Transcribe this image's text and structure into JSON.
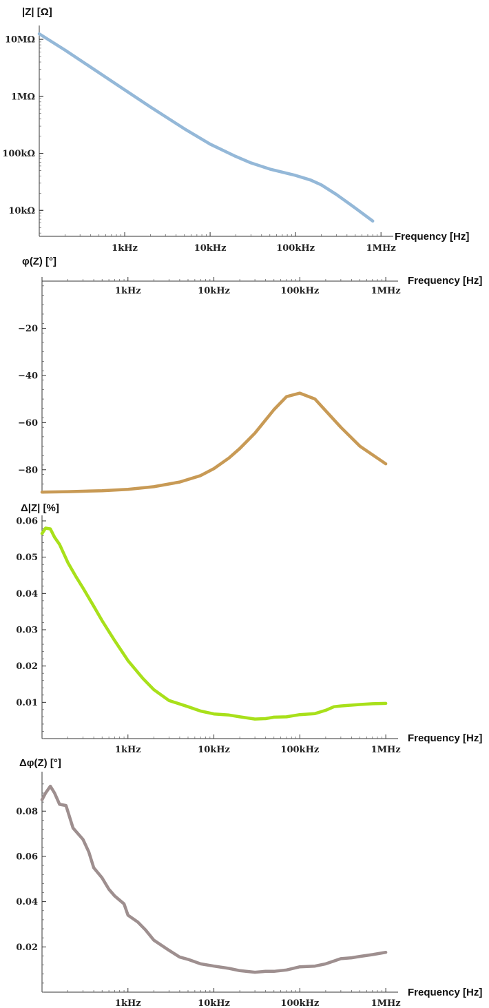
{
  "chart_data": [
    {
      "type": "line",
      "ylabel": "|Z| [Ω]",
      "xlabel": "Frequency [Hz]",
      "x_scale": "log",
      "y_scale": "log",
      "xlim": [
        100,
        1200000
      ],
      "ylim": [
        3500,
        14000000
      ],
      "x_ticks": [
        {
          "value": 1000,
          "label": "1kHz"
        },
        {
          "value": 10000,
          "label": "10kHz"
        },
        {
          "value": 100000,
          "label": "100kHz"
        },
        {
          "value": 1000000,
          "label": "1MHz"
        }
      ],
      "y_ticks": [
        {
          "value": 10000,
          "label": "10kΩ"
        },
        {
          "value": 100000,
          "label": "100kΩ"
        },
        {
          "value": 1000000,
          "label": "1MΩ"
        },
        {
          "value": 10000000,
          "label": "10MΩ"
        }
      ],
      "color": "#94b8d8",
      "x": [
        100,
        200,
        500,
        1000,
        2000,
        5000,
        10000,
        20000,
        30000,
        50000,
        100000,
        150000,
        200000,
        300000,
        500000,
        800000
      ],
      "y": [
        12500000,
        6500000,
        2600000,
        1300000,
        650000,
        270000,
        145000,
        88000,
        68000,
        53000,
        41000,
        34000,
        28000,
        19000,
        11000,
        6500
      ]
    },
    {
      "type": "line",
      "ylabel": "φ(Z) [°]",
      "xlabel": "Frequency [Hz]",
      "x_scale": "log",
      "xlim": [
        100,
        1200000
      ],
      "ylim": [
        -90,
        0
      ],
      "x_ticks": [
        {
          "value": 1000,
          "label": "1kHz"
        },
        {
          "value": 10000,
          "label": "10kHz"
        },
        {
          "value": 100000,
          "label": "100kHz"
        },
        {
          "value": 1000000,
          "label": "1MHz"
        }
      ],
      "y_ticks": [
        {
          "value": -20,
          "label": "−20"
        },
        {
          "value": -40,
          "label": "−40"
        },
        {
          "value": -60,
          "label": "−60"
        },
        {
          "value": -80,
          "label": "−80"
        }
      ],
      "color": "#c89a55",
      "x": [
        100,
        200,
        500,
        1000,
        2000,
        4000,
        7000,
        10000,
        15000,
        20000,
        30000,
        50000,
        70000,
        100000,
        150000,
        200000,
        300000,
        500000,
        1000000
      ],
      "y": [
        -89.5,
        -89.3,
        -88.9,
        -88.3,
        -87.2,
        -85.2,
        -82.5,
        -79.5,
        -75,
        -71,
        -64.5,
        -54.5,
        -49,
        -47.5,
        -50,
        -55,
        -62,
        -70,
        -77.5
      ]
    },
    {
      "type": "line",
      "ylabel": "Δ|Z| [%]",
      "xlabel": "Frequency [Hz]",
      "x_scale": "log",
      "xlim": [
        100,
        1200000
      ],
      "ylim": [
        0,
        0.06
      ],
      "x_ticks": [
        {
          "value": 1000,
          "label": "1kHz"
        },
        {
          "value": 10000,
          "label": "10kHz"
        },
        {
          "value": 100000,
          "label": "100kHz"
        },
        {
          "value": 1000000,
          "label": "1MHz"
        }
      ],
      "y_ticks": [
        {
          "value": 0.01,
          "label": "0.01"
        },
        {
          "value": 0.02,
          "label": "0.02"
        },
        {
          "value": 0.03,
          "label": "0.03"
        },
        {
          "value": 0.04,
          "label": "0.04"
        },
        {
          "value": 0.05,
          "label": "0.05"
        },
        {
          "value": 0.06,
          "label": "0.06"
        }
      ],
      "color": "#a8e01a",
      "x": [
        100,
        110,
        125,
        140,
        160,
        200,
        250,
        300,
        400,
        500,
        700,
        1000,
        1500,
        2000,
        3000,
        5000,
        7000,
        10000,
        15000,
        20000,
        30000,
        40000,
        50000,
        70000,
        100000,
        150000,
        200000,
        250000,
        300000,
        500000,
        700000,
        1000000
      ],
      "y": [
        0.0565,
        0.058,
        0.0578,
        0.0555,
        0.0535,
        0.0485,
        0.0445,
        0.0415,
        0.0365,
        0.0325,
        0.027,
        0.0215,
        0.0165,
        0.0135,
        0.0105,
        0.0088,
        0.0076,
        0.0068,
        0.0065,
        0.006,
        0.0054,
        0.0055,
        0.0059,
        0.006,
        0.0066,
        0.0069,
        0.0078,
        0.0088,
        0.009,
        0.0094,
        0.0096,
        0.0097
      ]
    },
    {
      "type": "line",
      "ylabel": "Δφ(Z) [°]",
      "xlabel": "Frequency [Hz]",
      "x_scale": "log",
      "xlim": [
        100,
        1200000
      ],
      "ylim": [
        0,
        0.095
      ],
      "x_ticks": [
        {
          "value": 1000,
          "label": "1kHz"
        },
        {
          "value": 10000,
          "label": "10kHz"
        },
        {
          "value": 100000,
          "label": "100kHz"
        },
        {
          "value": 1000000,
          "label": "1MHz"
        }
      ],
      "y_ticks": [
        {
          "value": 0.02,
          "label": "0.02"
        },
        {
          "value": 0.04,
          "label": "0.04"
        },
        {
          "value": 0.06,
          "label": "0.06"
        },
        {
          "value": 0.08,
          "label": "0.08"
        }
      ],
      "color": "#9e8f8f",
      "x": [
        100,
        110,
        125,
        140,
        160,
        190,
        230,
        300,
        350,
        400,
        500,
        600,
        700,
        900,
        1000,
        1300,
        1600,
        2000,
        3000,
        4000,
        5000,
        7000,
        10000,
        15000,
        20000,
        30000,
        40000,
        50000,
        70000,
        100000,
        150000,
        200000,
        300000,
        400000,
        500000,
        700000,
        1000000
      ],
      "y": [
        0.085,
        0.088,
        0.091,
        0.088,
        0.083,
        0.0825,
        0.0725,
        0.0675,
        0.062,
        0.055,
        0.0505,
        0.0455,
        0.0425,
        0.039,
        0.034,
        0.031,
        0.0275,
        0.023,
        0.0185,
        0.0155,
        0.0145,
        0.0125,
        0.0115,
        0.0105,
        0.0095,
        0.0088,
        0.0092,
        0.0092,
        0.0098,
        0.0112,
        0.0115,
        0.0125,
        0.0148,
        0.0152,
        0.0158,
        0.0166,
        0.0176
      ]
    }
  ]
}
